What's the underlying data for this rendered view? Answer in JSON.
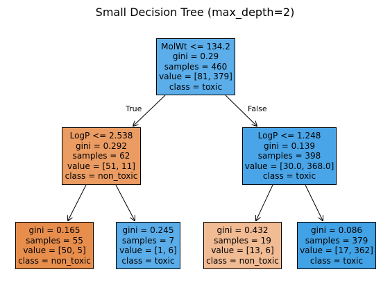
{
  "title": "Small Decision Tree (max_depth=2)",
  "edge_labels": {
    "true": "True",
    "false": "False"
  },
  "nodes": {
    "root": {
      "lines": [
        "MolWt <= 134.2",
        "gini = 0.29",
        "samples = 460",
        "value = [81, 379]",
        "class = toxic"
      ],
      "color": "#5baeea"
    },
    "left": {
      "lines": [
        "LogP <= 2.538",
        "gini = 0.292",
        "samples = 62",
        "value = [51, 11]",
        "class = non_toxic"
      ],
      "color": "#eb9c63"
    },
    "right": {
      "lines": [
        "LogP <= 1.248",
        "gini = 0.139",
        "samples = 398",
        "value = [30.0, 368.0]",
        "class = toxic"
      ],
      "color": "#49a5e7"
    },
    "ll": {
      "lines": [
        "gini = 0.165",
        "samples = 55",
        "value = [50, 5]",
        "class = non_toxic"
      ],
      "color": "#e88e4d"
    },
    "lr": {
      "lines": [
        "gini = 0.245",
        "samples = 7",
        "value = [1, 6]",
        "class = toxic"
      ],
      "color": "#5aade9"
    },
    "rl": {
      "lines": [
        "gini = 0.432",
        "samples = 19",
        "value = [13, 6]",
        "class = non_toxic"
      ],
      "color": "#f1bb94"
    },
    "rr": {
      "lines": [
        "gini = 0.086",
        "samples = 379",
        "value = [17, 362]",
        "class = toxic"
      ],
      "color": "#42a2e6"
    }
  }
}
